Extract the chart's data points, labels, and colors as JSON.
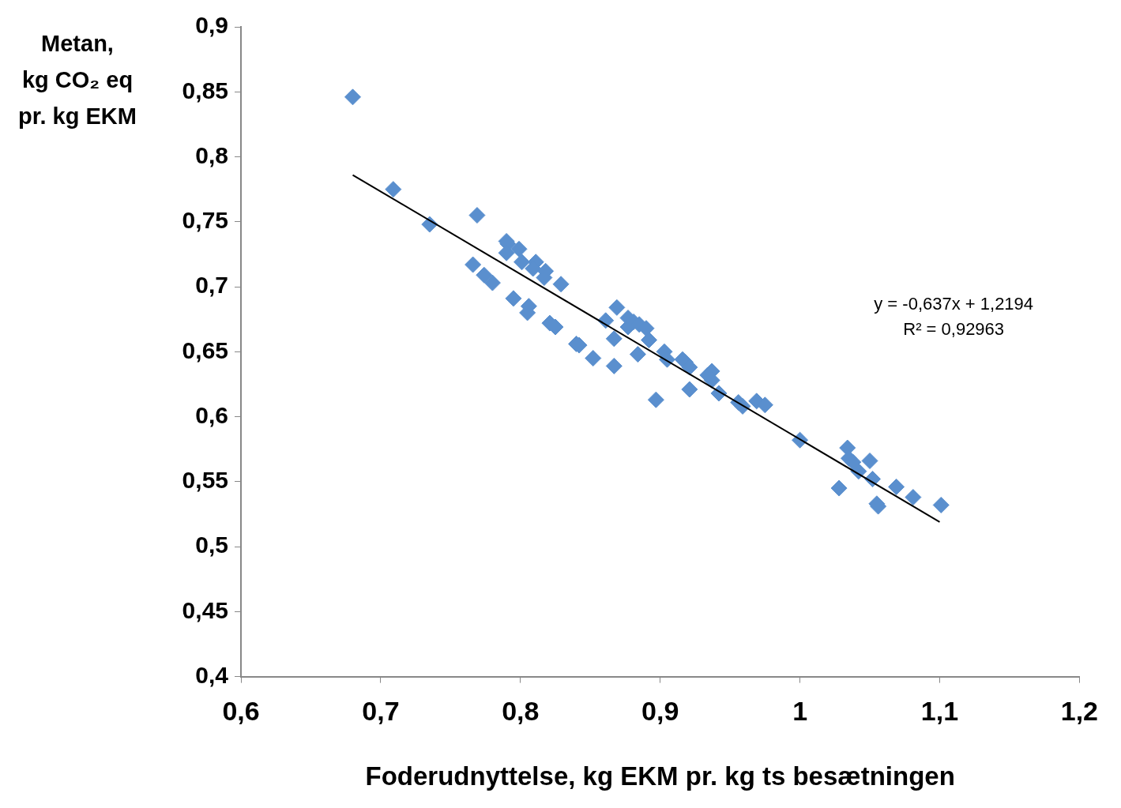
{
  "chart_data": {
    "type": "scatter",
    "xlabel": "Foderudnyttelse, kg EKM pr. kg ts besætningen",
    "ylabel": "Metan,\nkg CO₂ eq\npr. kg EKM",
    "x": [
      0.68,
      0.709,
      0.735,
      0.769,
      0.766,
      0.774,
      0.78,
      0.79,
      0.791,
      0.79,
      0.799,
      0.801,
      0.811,
      0.809,
      0.818,
      0.817,
      0.829,
      0.795,
      0.806,
      0.805,
      0.821,
      0.825,
      0.84,
      0.842,
      0.852,
      0.867,
      0.861,
      0.869,
      0.867,
      0.877,
      0.877,
      0.881,
      0.885,
      0.89,
      0.892,
      0.884,
      0.897,
      0.903,
      0.905,
      0.916,
      0.918,
      0.921,
      0.921,
      0.934,
      0.937,
      0.937,
      0.942,
      0.956,
      0.959,
      0.969,
      0.975,
      1.0,
      1.028,
      1.034,
      1.035,
      1.038,
      1.042,
      1.05,
      1.052,
      1.055,
      1.056,
      1.069,
      1.081,
      1.101
    ],
    "series": [
      {
        "marker": "diamond",
        "color": "#5a8fce",
        "values": [
          0.846,
          0.775,
          0.748,
          0.755,
          0.717,
          0.709,
          0.703,
          0.735,
          0.733,
          0.726,
          0.729,
          0.719,
          0.719,
          0.714,
          0.712,
          0.707,
          0.702,
          0.691,
          0.685,
          0.68,
          0.672,
          0.669,
          0.656,
          0.655,
          0.645,
          0.639,
          0.674,
          0.684,
          0.66,
          0.676,
          0.669,
          0.673,
          0.671,
          0.668,
          0.659,
          0.648,
          0.613,
          0.65,
          0.644,
          0.644,
          0.642,
          0.638,
          0.621,
          0.632,
          0.635,
          0.628,
          0.618,
          0.611,
          0.608,
          0.612,
          0.609,
          0.582,
          0.545,
          0.576,
          0.568,
          0.565,
          0.558,
          0.566,
          0.552,
          0.533,
          0.531,
          0.546,
          0.538,
          0.532
        ]
      },
      {
        "type": "line",
        "marker": "none",
        "color": "#000000",
        "x": [
          0.68,
          1.1
        ],
        "values": [
          0.786,
          0.519
        ]
      }
    ],
    "grid": false,
    "legend": false,
    "annotations": [
      "y = -0,637x + 1,2194",
      "R² = 0,92963"
    ],
    "xlim": [
      0.6,
      1.2
    ],
    "xticks": [
      {
        "value": 0.6,
        "label": "0,6"
      },
      {
        "value": 0.7,
        "label": "0,7"
      },
      {
        "value": 0.8,
        "label": "0,8"
      },
      {
        "value": 0.9,
        "label": "0,9"
      },
      1,
      {
        "value": 1.1,
        "label": "1,1"
      },
      {
        "value": 1.2,
        "label": "1,2"
      }
    ],
    "ylim": [
      0.4,
      0.9
    ],
    "yticks": [
      {
        "value": 0.4,
        "label": "0,4"
      },
      {
        "value": 0.45,
        "label": "0,45"
      },
      {
        "value": 0.5,
        "label": "0,5"
      },
      {
        "value": 0.55,
        "label": "0,55"
      },
      {
        "value": 0.6,
        "label": "0,6"
      },
      {
        "value": 0.65,
        "label": "0,65"
      },
      {
        "value": 0.7,
        "label": "0,7"
      },
      {
        "value": 0.75,
        "label": "0,75"
      },
      {
        "value": 0.8,
        "label": "0,8"
      },
      {
        "value": 0.85,
        "label": "0,85"
      },
      {
        "value": 0.9,
        "label": "0,9"
      }
    ]
  }
}
